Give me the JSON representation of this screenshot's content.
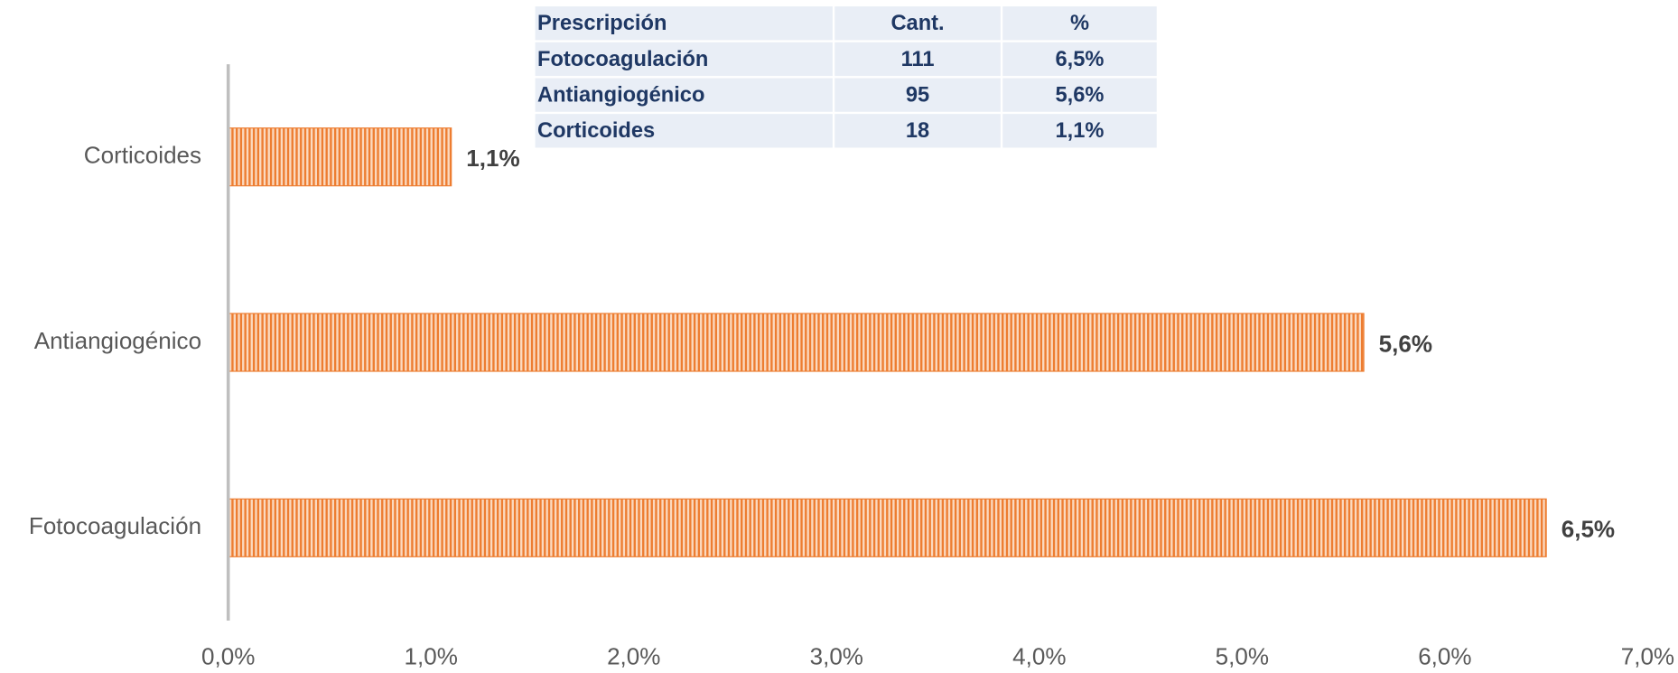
{
  "chart_data": {
    "type": "bar",
    "orientation": "horizontal",
    "categories": [
      "Fotocoagulación",
      "Antiangiogénico",
      "Corticoides"
    ],
    "values": [
      6.5,
      5.6,
      1.1
    ],
    "value_labels": [
      "6,5%",
      "5,6%",
      "1,1%"
    ],
    "color": "#ed7d31",
    "xlim": [
      0,
      7
    ],
    "xticks": [
      {
        "value": 0,
        "label": "0,0%"
      },
      {
        "value": 1,
        "label": "1,0%"
      },
      {
        "value": 2,
        "label": "2,0%"
      },
      {
        "value": 3,
        "label": "3,0%"
      },
      {
        "value": 4,
        "label": "4,0%"
      },
      {
        "value": 5,
        "label": "5,0%"
      },
      {
        "value": 6,
        "label": "6,0%"
      },
      {
        "value": 7,
        "label": "7,0%"
      }
    ],
    "grid": false
  },
  "table": {
    "header": [
      "Prescripción",
      "Cant.",
      "%"
    ],
    "rows": [
      [
        "Fotocoagulación",
        111,
        "6,5%"
      ],
      [
        "Antiangiogénico",
        95,
        "5,6%"
      ],
      [
        "Corticoides",
        18,
        "1,1%"
      ]
    ]
  }
}
